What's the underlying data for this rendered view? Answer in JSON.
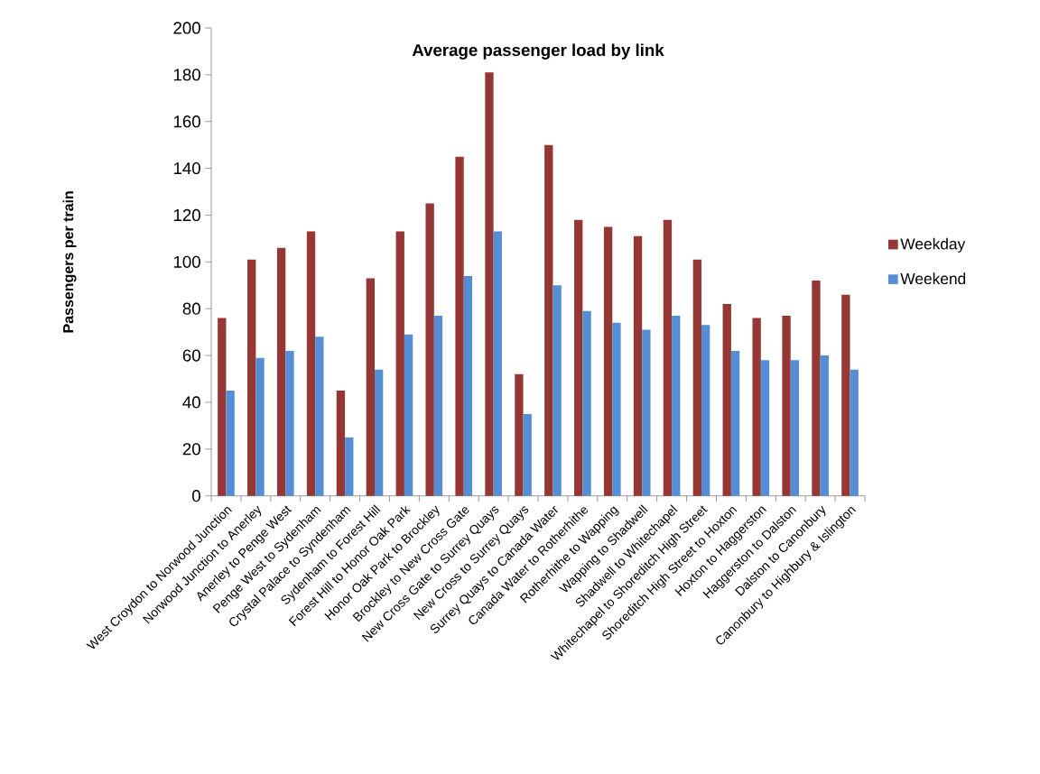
{
  "chart_data": {
    "type": "bar",
    "title": "Average passenger load by link",
    "ylabel": "Passengers per train",
    "categories": [
      "West Croydon to Norwood Junction",
      "Norwood Junction to Anerley",
      "Anerley to Penge West",
      "Penge West to Sydenham",
      "Crystal Palace to Syndenham",
      "Sydenham to Forest Hill",
      "Forest Hill to Honor Oak Park",
      "Honor Oak Park to Brockley",
      "Brockley to New Cross Gate",
      "New Cross Gate to Surrey Quays",
      "New Cross to Surrey Quays",
      "Surrey Quays  to Canada Water",
      "Canada Water to Rotherhithe",
      "Rotherhithe to Wapping",
      "Wapping to Shadwell",
      "Shadwell to Whitechapel",
      "Whitechapel to Shoreditch High Street",
      "Shoreditch High Street to Hoxton",
      "Hoxton to Haggerston",
      "Haggerston to Dalston",
      "Dalston to Canonbury",
      "Canonbury to Highbury & Islington"
    ],
    "series": [
      {
        "name": "Weekday",
        "color": "#953735",
        "values": [
          76,
          101,
          106,
          113,
          45,
          93,
          113,
          125,
          145,
          181,
          52,
          150,
          118,
          115,
          111,
          118,
          101,
          82,
          76,
          77,
          92,
          86
        ]
      },
      {
        "name": "Weekend",
        "color": "#558ed5",
        "values": [
          45,
          59,
          62,
          68,
          25,
          54,
          69,
          77,
          94,
          113,
          35,
          90,
          79,
          74,
          71,
          77,
          73,
          62,
          58,
          58,
          60,
          54
        ]
      }
    ],
    "ylim": [
      0,
      200
    ],
    "yticks": [
      0,
      20,
      40,
      60,
      80,
      100,
      120,
      140,
      160,
      180,
      200
    ],
    "grid": false,
    "legend": "right"
  }
}
